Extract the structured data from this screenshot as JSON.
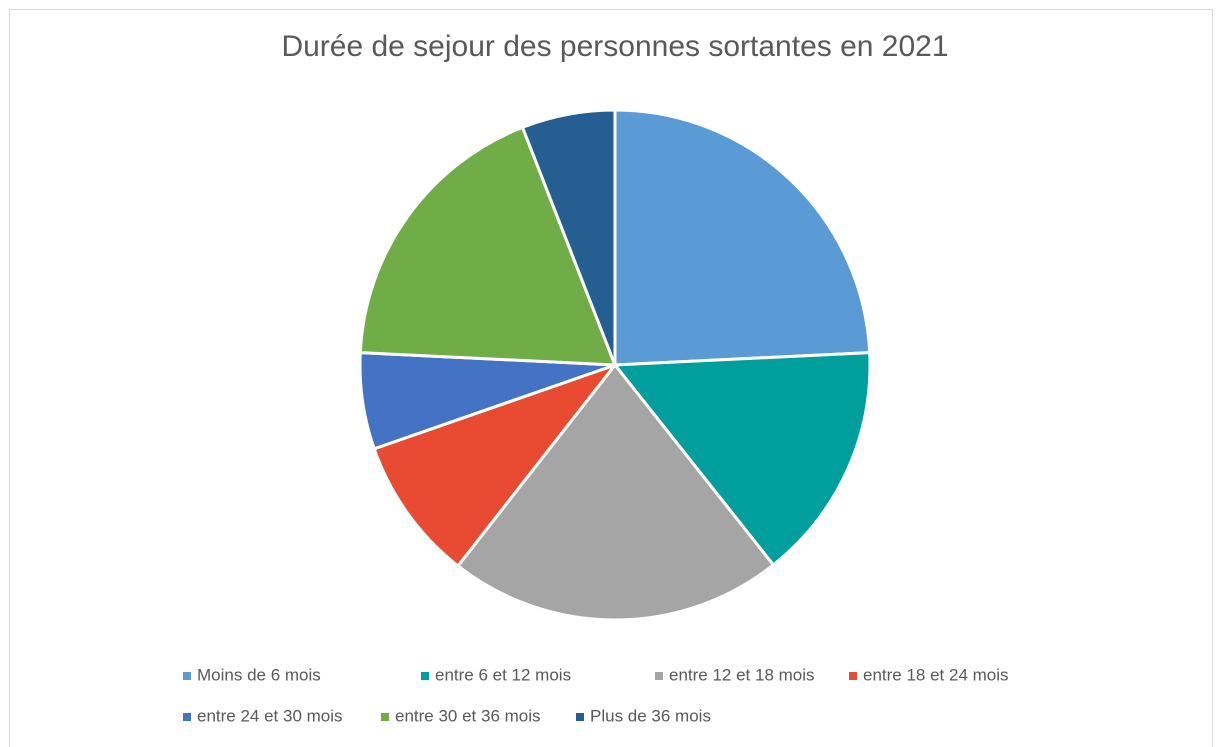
{
  "chart_data": {
    "type": "pie",
    "title": "Durée de sejour des personnes sortantes en 2021",
    "categories": [
      "Moins de 6 mois",
      "entre 6 et 12 mois",
      "entre 12 et 18 mois",
      "entre 18 et 24 mois",
      "entre 24 et 30 mois",
      "entre 30 et 36 mois",
      "Plus de 36 mois"
    ],
    "values": [
      24.2,
      15.1,
      21.2,
      9.1,
      6.1,
      18.3,
      5.9
    ],
    "colors": [
      "#5b9bd5",
      "#009e9c",
      "#a5a5a5",
      "#e84a32",
      "#4472c4",
      "#70ad47",
      "#255e91"
    ],
    "legend": "bottom"
  }
}
